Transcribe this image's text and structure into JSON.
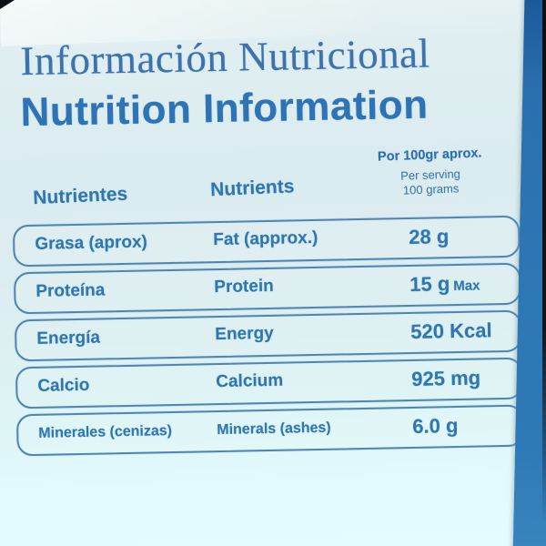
{
  "label": {
    "title_es": "Información Nutricional",
    "title_en": "Nutrition Information",
    "columns": {
      "nutrients_es": "Nutrientes",
      "nutrients_en": "Nutrients",
      "amount_line1": "Por 100gr aprox.",
      "amount_line2": "Per serving",
      "amount_line3": "100 grams"
    },
    "rows": [
      {
        "es": "Grasa (aprox)",
        "en": "Fat (approx.)",
        "value": "28 g",
        "suffix": ""
      },
      {
        "es": "Proteína",
        "en": "Protein",
        "value": "15 g",
        "suffix": "Max"
      },
      {
        "es": "Energía",
        "en": "Energy",
        "value": "520 Kcal",
        "suffix": ""
      },
      {
        "es": "Calcio",
        "en": "Calcium",
        "value": "925 mg",
        "suffix": ""
      },
      {
        "es": "Minerales (cenizas)",
        "en": "Minerals (ashes)",
        "value": "6.0 g",
        "suffix": ""
      }
    ],
    "colors": {
      "text_blue": "#2e77b0",
      "title_serif_blue": "#3d72ad",
      "title_sans_blue": "#2e74b4",
      "pill_border_blue": "#4e86b2",
      "bag_edge_blue": "#2e77b5",
      "background_pale": "#dcedf1",
      "edge_black": "#10151b"
    }
  }
}
